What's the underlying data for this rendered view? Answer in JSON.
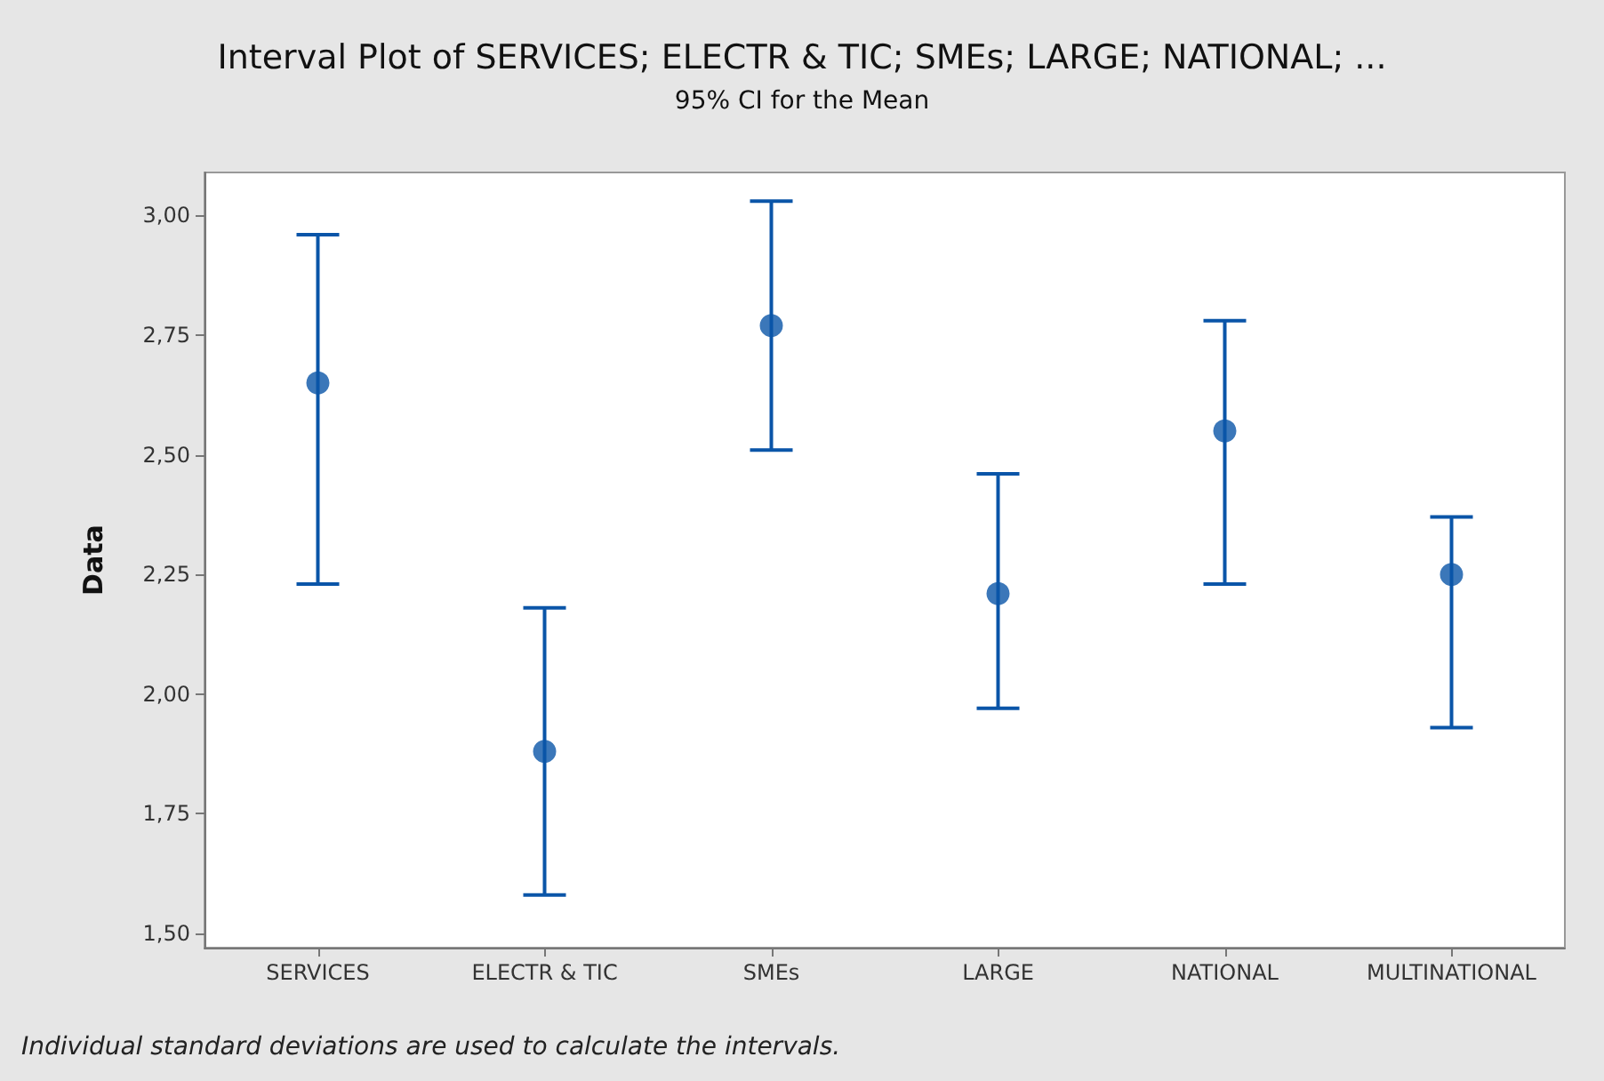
{
  "chart_data": {
    "type": "scatter",
    "title": "Interval Plot of SERVICES; ELECTR & TIC; SMEs; LARGE; NATIONAL; ...",
    "subtitle": "95% CI for the Mean",
    "ylabel": "Data",
    "categories": [
      "SERVICES",
      "ELECTR & TIC",
      "SMEs",
      "LARGE",
      "NATIONAL",
      "MULTINATIONAL"
    ],
    "series": [
      {
        "color": "#0a55a8",
        "values": [
          2.65,
          1.88,
          2.77,
          2.21,
          2.55,
          2.25
        ],
        "errors": [
          [
            2.23,
            2.96
          ],
          [
            1.58,
            2.18
          ],
          [
            2.51,
            3.03
          ],
          [
            1.97,
            2.46
          ],
          [
            2.23,
            2.78
          ],
          [
            1.93,
            2.37
          ]
        ]
      }
    ],
    "ylim": [
      1.47,
      3.09
    ],
    "yticks": [
      {
        "value": 1.5,
        "label": "1,50"
      },
      {
        "value": 1.75,
        "label": "1,75"
      },
      {
        "value": 2.0,
        "label": "2,00"
      },
      {
        "value": 2.25,
        "label": "2,25"
      },
      {
        "value": 2.5,
        "label": "2,50"
      },
      {
        "value": 2.75,
        "label": "2,75"
      },
      {
        "value": 3.0,
        "label": "3,00"
      }
    ],
    "grid": false,
    "marker": "circle",
    "annotations": [
      "Individual standard deviations are used to calculate the intervals."
    ]
  }
}
